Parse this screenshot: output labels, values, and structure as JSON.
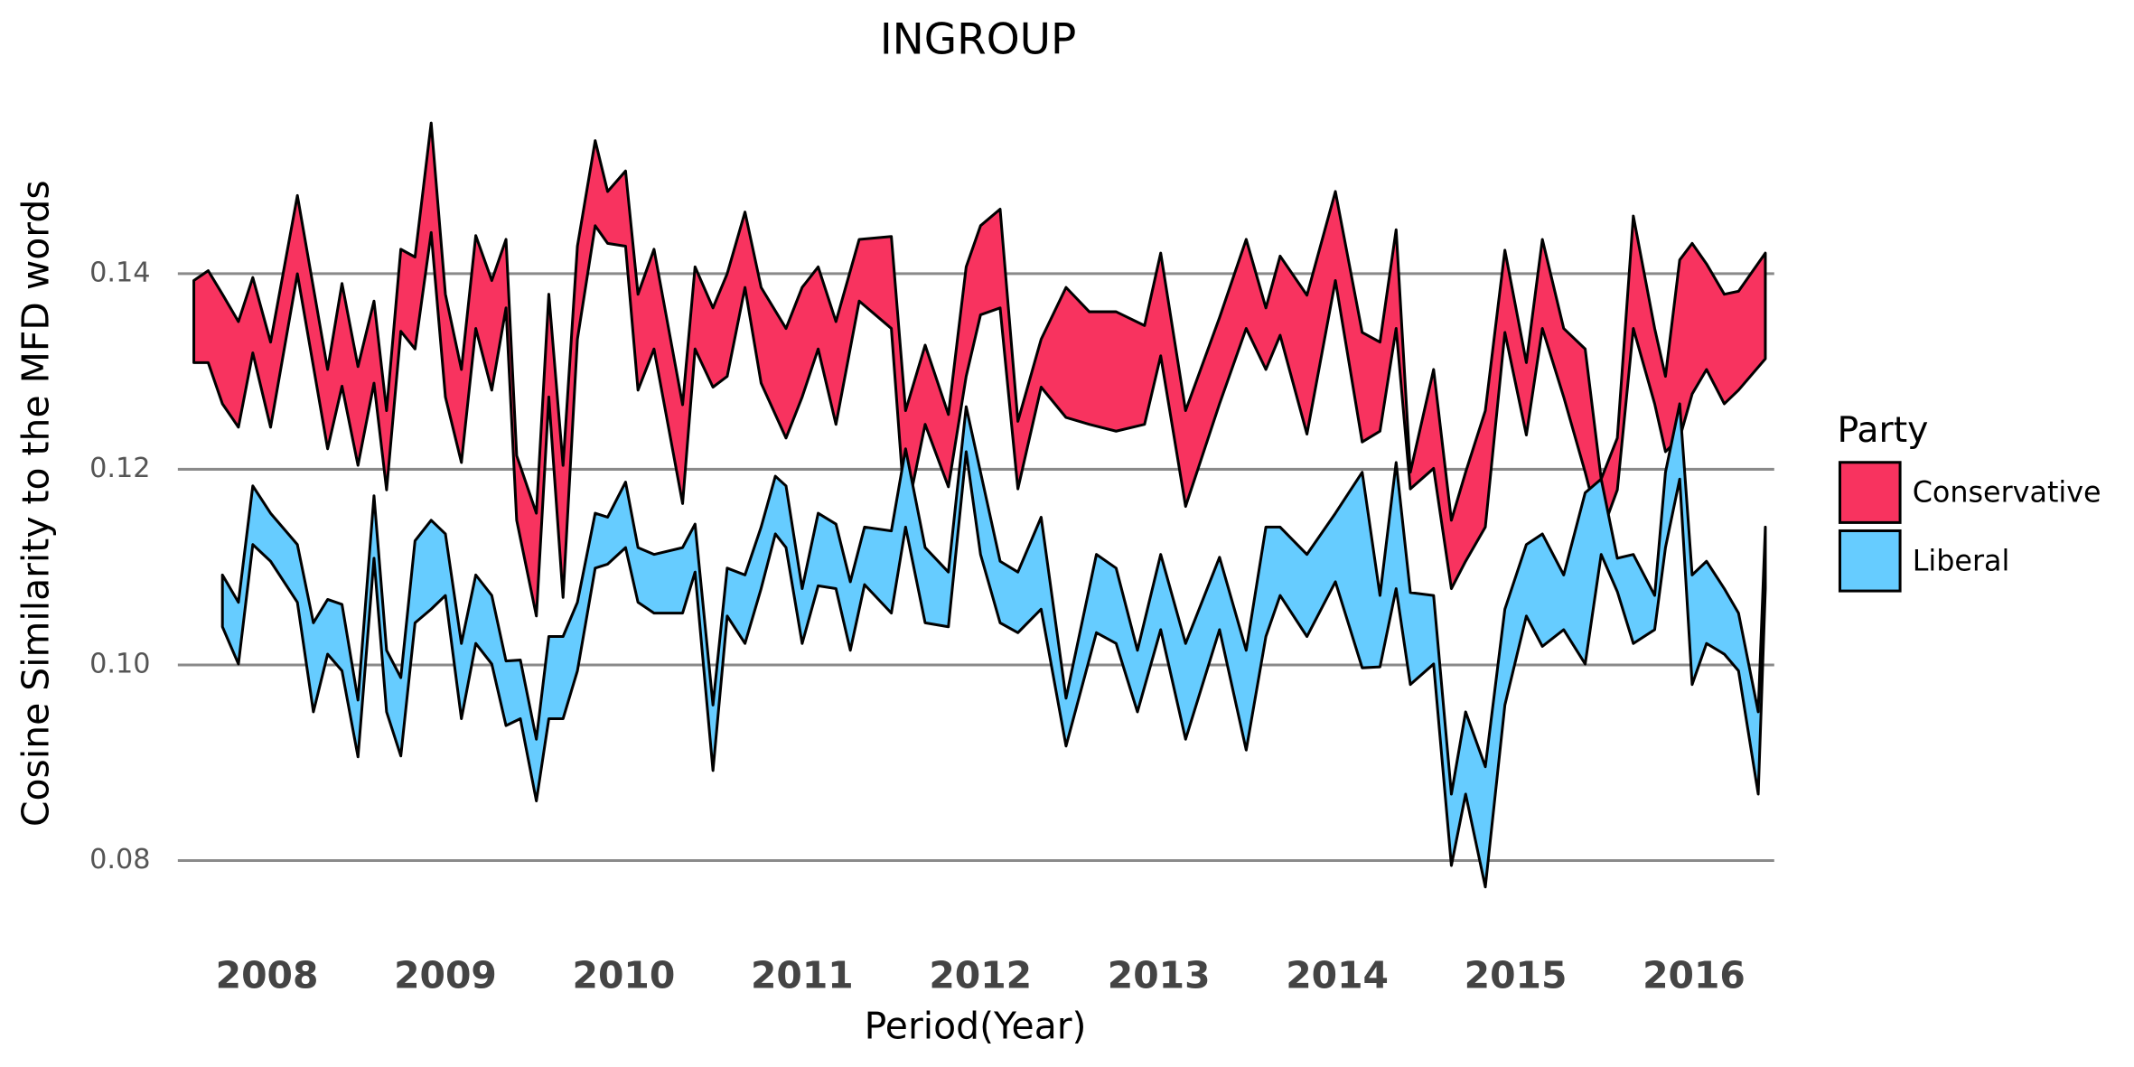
{
  "chart_data": {
    "type": "ribbon",
    "title": "INGROUP",
    "x_label": "Period(Year)",
    "y_label": "Cosine Similarity to the MFD words",
    "xlim": [
      2007.5,
      2016.45
    ],
    "xticks": [
      2008,
      2009,
      2010,
      2011,
      2012,
      2013,
      2014,
      2015,
      2016
    ],
    "ylim": [
      0.074,
      0.157
    ],
    "yticks": [
      0.08,
      {
        "value": 0.1,
        "label": "0.10"
      },
      0.12,
      0.14
    ],
    "grid": true,
    "legend_title": "Party",
    "legend": "right",
    "series": [
      {
        "name": "Conservative",
        "color": "#F8335F",
        "x": [
          2007.59,
          2007.67,
          2007.75,
          2007.84,
          2007.92,
          2008.02,
          2008.17,
          2008.34,
          2008.42,
          2008.51,
          2008.6,
          2008.67,
          2008.75,
          2008.83,
          2008.92,
          2009.0,
          2009.09,
          2009.17,
          2009.26,
          2009.34,
          2009.4,
          2009.51,
          2009.58,
          2009.66,
          2009.74,
          2009.84,
          2009.91,
          2010.01,
          2010.08,
          2010.17,
          2010.33,
          2010.4,
          2010.5,
          2010.58,
          2010.68,
          2010.77,
          2010.91,
          2011.0,
          2011.09,
          2011.19,
          2011.32,
          2011.5,
          2011.58,
          2011.69,
          2011.82,
          2011.92,
          2012.0,
          2012.11,
          2012.21,
          2012.34,
          2012.48,
          2012.61,
          2012.76,
          2012.92,
          2013.01,
          2013.15,
          2013.34,
          2013.49,
          2013.6,
          2013.68,
          2013.83,
          2013.99,
          2014.14,
          2014.24,
          2014.33,
          2014.41,
          2014.54,
          2014.64,
          2014.72,
          2014.83,
          2014.94,
          2015.06,
          2015.15,
          2015.27,
          2015.39,
          2015.48,
          2015.57,
          2015.66,
          2015.78,
          2015.84,
          2015.92,
          2015.99,
          2016.07,
          2016.17,
          2016.25,
          2016.4
        ],
        "high": [
          0.1393,
          0.1403,
          0.1379,
          0.1351,
          0.1396,
          0.133,
          0.148,
          0.1302,
          0.139,
          0.1305,
          0.1372,
          0.126,
          0.1425,
          0.1417,
          0.1554,
          0.1379,
          0.1302,
          0.1439,
          0.1393,
          0.1435,
          0.1214,
          0.1155,
          0.1379,
          0.1204,
          0.1428,
          0.1536,
          0.1484,
          0.1505,
          0.1379,
          0.1425,
          0.1266,
          0.1407,
          0.1365,
          0.14,
          0.1463,
          0.1386,
          0.1344,
          0.1386,
          0.1407,
          0.1351,
          0.1435,
          0.1438,
          0.126,
          0.1327,
          0.1256,
          0.1407,
          0.1449,
          0.1466,
          0.1249,
          0.1333,
          0.1386,
          0.1361,
          0.1361,
          0.1347,
          0.1421,
          0.126,
          0.1355,
          0.1435,
          0.1365,
          0.1418,
          0.1378,
          0.1484,
          0.134,
          0.133,
          0.1445,
          0.1197,
          0.1302,
          0.1148,
          0.1197,
          0.126,
          0.1424,
          0.1309,
          0.1435,
          0.1344,
          0.1323,
          0.119,
          0.1232,
          0.1459,
          0.1344,
          0.1295,
          0.1414,
          0.1431,
          0.141,
          0.1379,
          0.1382,
          0.1421
        ],
        "low": [
          0.1309,
          0.1309,
          0.1267,
          0.1243,
          0.1319,
          0.1243,
          0.14,
          0.1221,
          0.1285,
          0.1204,
          0.1288,
          0.1179,
          0.1341,
          0.1323,
          0.1442,
          0.1274,
          0.1207,
          0.1344,
          0.1281,
          0.1365,
          0.1148,
          0.105,
          0.1274,
          0.1069,
          0.1333,
          0.1449,
          0.1431,
          0.1428,
          0.1281,
          0.1323,
          0.1165,
          0.1323,
          0.1284,
          0.1295,
          0.1386,
          0.1288,
          0.1232,
          0.1274,
          0.1323,
          0.1246,
          0.1372,
          0.1344,
          0.1148,
          0.1246,
          0.1182,
          0.1295,
          0.1358,
          0.1365,
          0.118,
          0.1284,
          0.1253,
          0.1246,
          0.1239,
          0.1246,
          0.1316,
          0.1162,
          0.1267,
          0.1344,
          0.1302,
          0.1337,
          0.1236,
          0.1393,
          0.1228,
          0.1239,
          0.1344,
          0.118,
          0.1201,
          0.1078,
          0.1106,
          0.1141,
          0.134,
          0.1235,
          0.1344,
          0.1274,
          0.1197,
          0.1134,
          0.1179,
          0.1344,
          0.1267,
          0.1218,
          0.1232,
          0.1277,
          0.1302,
          0.1267,
          0.1281,
          0.1313
        ]
      },
      {
        "name": "Liberal",
        "color": "#66CCFF",
        "x": [
          2007.75,
          2007.84,
          2007.92,
          2008.02,
          2008.17,
          2008.26,
          2008.34,
          2008.42,
          2008.51,
          2008.6,
          2008.67,
          2008.75,
          2008.83,
          2008.92,
          2009.0,
          2009.09,
          2009.17,
          2009.26,
          2009.34,
          2009.42,
          2009.51,
          2009.58,
          2009.66,
          2009.74,
          2009.84,
          2009.91,
          2010.01,
          2010.08,
          2010.17,
          2010.33,
          2010.4,
          2010.5,
          2010.58,
          2010.68,
          2010.77,
          2010.85,
          2010.91,
          2011.0,
          2011.09,
          2011.19,
          2011.27,
          2011.35,
          2011.5,
          2011.58,
          2011.69,
          2011.82,
          2011.92,
          2012.0,
          2012.11,
          2012.21,
          2012.34,
          2012.48,
          2012.65,
          2012.76,
          2012.88,
          2013.01,
          2013.15,
          2013.34,
          2013.49,
          2013.6,
          2013.68,
          2013.83,
          2013.99,
          2014.14,
          2014.24,
          2014.33,
          2014.41,
          2014.54,
          2014.64,
          2014.72,
          2014.83,
          2014.94,
          2015.06,
          2015.15,
          2015.27,
          2015.39,
          2015.48,
          2015.57,
          2015.66,
          2015.78,
          2015.84,
          2015.92,
          2015.99,
          2016.07,
          2016.17,
          2016.25,
          2016.36,
          2016.4
        ],
        "high": [
          0.1092,
          0.1064,
          0.1183,
          0.1155,
          0.1123,
          0.1043,
          0.1067,
          0.1062,
          0.0964,
          0.1173,
          0.1015,
          0.0987,
          0.1127,
          0.1148,
          0.1134,
          0.1022,
          0.1092,
          0.1071,
          0.1004,
          0.1005,
          0.0924,
          0.1029,
          0.1029,
          0.1064,
          0.1155,
          0.1151,
          0.1187,
          0.112,
          0.1113,
          0.112,
          0.1144,
          0.0959,
          0.1099,
          0.1092,
          0.1141,
          0.1193,
          0.1183,
          0.1078,
          0.1155,
          0.1144,
          0.1085,
          0.1141,
          0.1137,
          0.1221,
          0.112,
          0.1095,
          0.1264,
          0.1197,
          0.1106,
          0.1095,
          0.1151,
          0.0966,
          0.1113,
          0.1099,
          0.1015,
          0.1113,
          0.1022,
          0.111,
          0.1015,
          0.1141,
          0.1141,
          0.1113,
          0.1155,
          0.1197,
          0.1071,
          0.1207,
          0.1074,
          0.1071,
          0.0868,
          0.0952,
          0.0896,
          0.1057,
          0.1123,
          0.1134,
          0.1092,
          0.1176,
          0.119,
          0.1109,
          0.1113,
          0.1071,
          0.1197,
          0.1267,
          0.1092,
          0.1106,
          0.1078,
          0.1053,
          0.0952,
          0.1141
        ],
        "low": [
          0.1039,
          0.1001,
          0.1123,
          0.1106,
          0.1064,
          0.0952,
          0.1011,
          0.0994,
          0.0906,
          0.1109,
          0.0952,
          0.0907,
          0.1043,
          0.1057,
          0.1071,
          0.0945,
          0.1022,
          0.1001,
          0.0938,
          0.0945,
          0.0861,
          0.0945,
          0.0945,
          0.0994,
          0.1099,
          0.1103,
          0.112,
          0.1064,
          0.1053,
          0.1053,
          0.1095,
          0.0892,
          0.105,
          0.1022,
          0.1078,
          0.1134,
          0.112,
          0.1022,
          0.1081,
          0.1078,
          0.1015,
          0.1082,
          0.1053,
          0.1141,
          0.1043,
          0.1039,
          0.1218,
          0.1113,
          0.1043,
          0.1033,
          0.1057,
          0.0917,
          0.1033,
          0.1022,
          0.0952,
          0.1036,
          0.0924,
          0.1036,
          0.0913,
          0.1029,
          0.1071,
          0.1029,
          0.1085,
          0.0997,
          0.0998,
          0.1078,
          0.098,
          0.1001,
          0.0795,
          0.0868,
          0.0773,
          0.0959,
          0.105,
          0.1019,
          0.1036,
          0.1001,
          0.1113,
          0.1075,
          0.1022,
          0.1036,
          0.112,
          0.119,
          0.098,
          0.1022,
          0.1011,
          0.0994,
          0.0868,
          0.1078
        ]
      }
    ]
  }
}
